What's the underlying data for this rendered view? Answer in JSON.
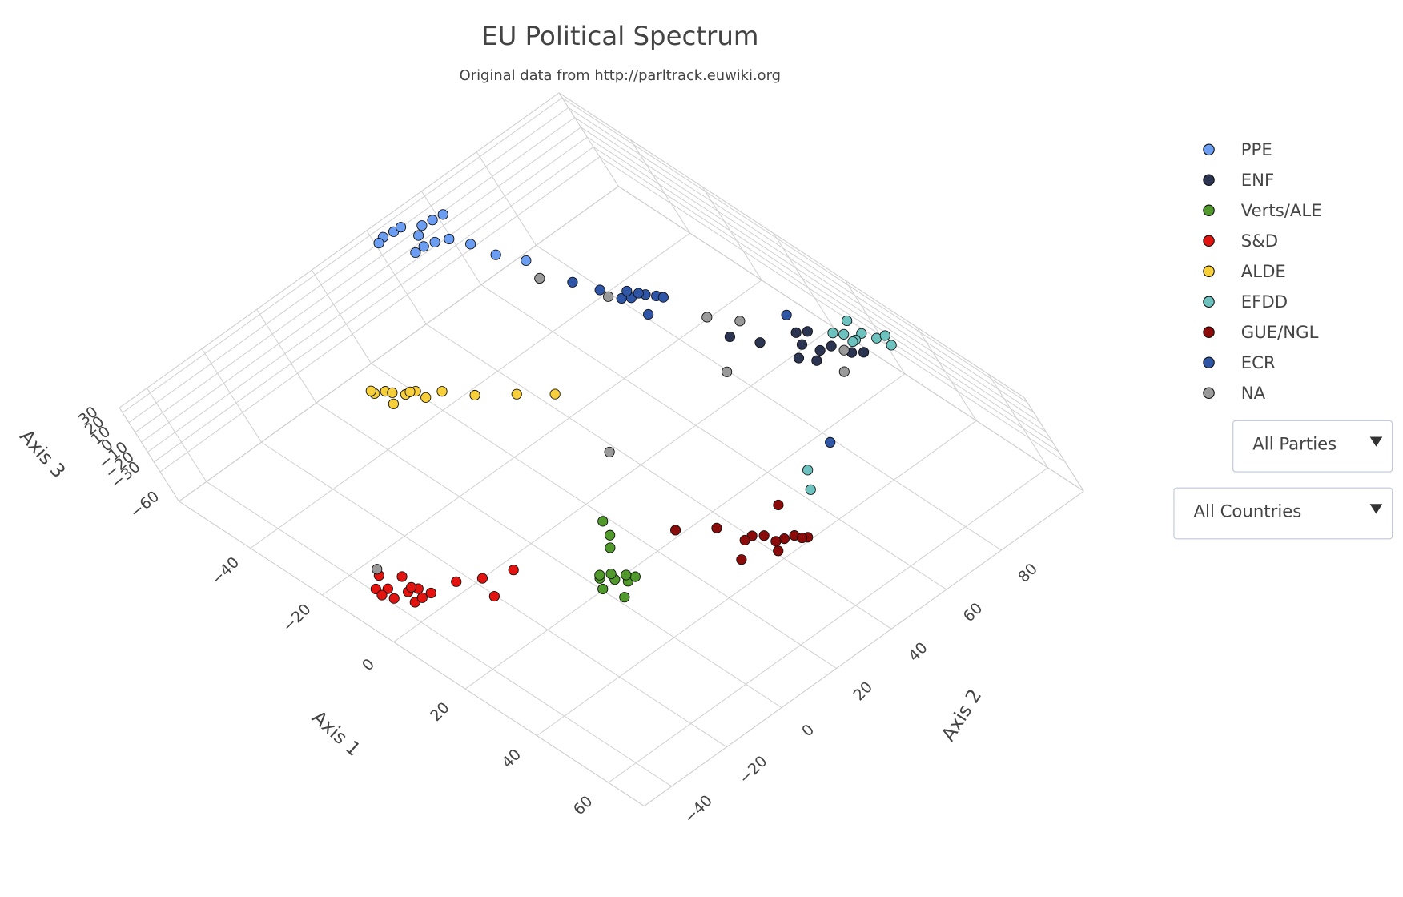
{
  "chart_data": {
    "type": "scatter3d",
    "title": "EU Political Spectrum",
    "subtitle": "Original data from http://parltrack.euwiki.org",
    "xlabel": "Axis 1",
    "ylabel": "Axis 2",
    "zlabel": "Axis 3",
    "xlim": [
      -60,
      70
    ],
    "ylim": [
      -50,
      110
    ],
    "zlim": [
      -60,
      35
    ],
    "xticks": [
      {
        "value": -40,
        "label": "−40"
      },
      {
        "value": -20,
        "label": "−20"
      },
      0,
      20,
      40,
      60
    ],
    "yticks": [
      {
        "value": -40,
        "label": "−40"
      },
      {
        "value": -20,
        "label": "−20"
      },
      0,
      20,
      40,
      60,
      80
    ],
    "zticks": [
      {
        "value": -60,
        "label": "−60"
      },
      {
        "value": -30,
        "label": "−30"
      },
      {
        "value": -20,
        "label": "−20"
      },
      {
        "value": -10,
        "label": "−10"
      },
      0,
      10,
      20,
      30
    ],
    "grid": true,
    "legend": "right",
    "series": [
      {
        "name": "PPE",
        "color": "#6b9ef2",
        "x": [
          -57,
          -55,
          -52,
          -58,
          -50,
          -54,
          -56,
          -51,
          -53,
          -48,
          -45,
          -40,
          -35,
          -30,
          -58,
          -49
        ],
        "y": [
          45,
          52,
          48,
          42,
          50,
          55,
          47,
          44,
          58,
          53,
          56,
          58,
          62,
          60,
          40,
          46
        ],
        "z": [
          31,
          28,
          33,
          29,
          27,
          30,
          34,
          26,
          32,
          29,
          25,
          22,
          20,
          18,
          27,
          33
        ]
      },
      {
        "name": "ENF",
        "color": "#2b3552",
        "x": [
          18,
          22,
          24,
          17,
          26,
          20,
          15,
          28,
          23,
          10,
          5
        ],
        "y": [
          90,
          95,
          88,
          94,
          97,
          86,
          92,
          99,
          91,
          84,
          80
        ],
        "z": [
          5,
          3,
          7,
          8,
          2,
          4,
          6,
          3,
          9,
          0,
          2
        ]
      },
      {
        "name": "Verts/ALE",
        "color": "#4f9a2a",
        "x": [
          30,
          33,
          35,
          32,
          36,
          29,
          34,
          31,
          27,
          22,
          25,
          38
        ],
        "y": [
          -4,
          -2,
          0,
          -6,
          2,
          -3,
          1,
          -1,
          5,
          10,
          8,
          -5
        ],
        "z": [
          -16,
          -14,
          -15,
          -18,
          -12,
          -17,
          -13,
          -15,
          -10,
          -5,
          -8,
          -14
        ]
      },
      {
        "name": "S&D",
        "color": "#e3140f",
        "x": [
          0,
          3,
          5,
          -2,
          7,
          2,
          4,
          -4,
          6,
          1,
          8,
          -1,
          10,
          14,
          18,
          20
        ],
        "y": [
          -43,
          -40,
          -38,
          -45,
          -42,
          -44,
          -39,
          -41,
          -36,
          -46,
          -40,
          -37,
          -30,
          -25,
          -18,
          -28
        ],
        "z": [
          -20,
          -22,
          -18,
          -21,
          -19,
          -23,
          -17,
          -20,
          -24,
          -18,
          -16,
          -22,
          -15,
          -12,
          -8,
          -10
        ]
      },
      {
        "name": "ALDE",
        "color": "#f6cf3a",
        "x": [
          -33,
          -30,
          -28,
          -35,
          -32,
          -29,
          -34,
          -27,
          -31,
          -25,
          -20,
          -15,
          -10
        ],
        "y": [
          5,
          8,
          10,
          3,
          6,
          9,
          2,
          11,
          4,
          15,
          20,
          28,
          35
        ],
        "z": [
          6,
          4,
          8,
          3,
          5,
          7,
          10,
          2,
          0,
          5,
          3,
          0,
          -2
        ]
      },
      {
        "name": "EFDD",
        "color": "#6cc2bf",
        "x": [
          22,
          25,
          27,
          21,
          28,
          24,
          20,
          26,
          30,
          40,
          45
        ],
        "y": [
          100,
          103,
          105,
          98,
          107,
          101,
          104,
          99,
          106,
          60,
          55
        ],
        "z": [
          5,
          7,
          3,
          8,
          4,
          2,
          6,
          9,
          1,
          -10,
          -8
        ]
      },
      {
        "name": "GUE/NGL",
        "color": "#8b0a0a",
        "x": [
          47,
          50,
          52,
          45,
          54,
          49,
          46,
          53,
          51,
          44,
          40,
          35,
          48
        ],
        "y": [
          35,
          38,
          40,
          33,
          42,
          36,
          30,
          41,
          34,
          45,
          28,
          20,
          25
        ],
        "z": [
          -10,
          -12,
          -8,
          -11,
          -9,
          -13,
          -7,
          -10,
          -14,
          -6,
          -5,
          -3,
          -12
        ]
      },
      {
        "name": "ECR",
        "color": "#2e55a6",
        "x": [
          -15,
          -13,
          -12,
          -16,
          -11,
          -14,
          -17,
          -10,
          -20,
          -25,
          10,
          40
        ],
        "y": [
          72,
          75,
          77,
          70,
          78,
          74,
          73,
          71,
          68,
          65,
          95,
          70
        ],
        "z": [
          10,
          12,
          9,
          11,
          8,
          13,
          10,
          7,
          14,
          16,
          6,
          -2
        ]
      },
      {
        "name": "NA",
        "color": "#9a9a9a",
        "x": [
          -18,
          -30,
          25,
          30,
          12,
          8,
          -5,
          0,
          5
        ],
        "y": [
          68,
          60,
          96,
          90,
          70,
          30,
          -40,
          80,
          85
        ],
        "z": [
          12,
          18,
          4,
          6,
          3,
          -8,
          -18,
          10,
          8
        ]
      }
    ]
  },
  "menus": [
    "All Parties",
    "All Countries"
  ]
}
